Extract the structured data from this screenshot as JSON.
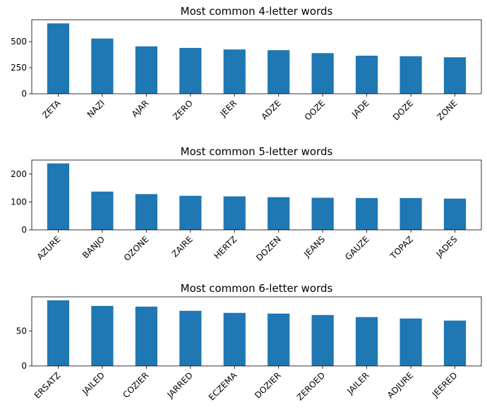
{
  "chart_data": [
    {
      "type": "bar",
      "title": "Most common 4-letter words",
      "categories": [
        "ZETA",
        "NAZI",
        "AJAR",
        "ZERO",
        "JEER",
        "ADZE",
        "OOZE",
        "JADE",
        "DOZE",
        "ZONE"
      ],
      "values": [
        675,
        530,
        455,
        440,
        425,
        418,
        390,
        365,
        360,
        350
      ],
      "yticks": [
        0,
        250,
        500
      ],
      "ylim": [
        0,
        710
      ],
      "grid": false,
      "bar_color": "#1f77b4"
    },
    {
      "type": "bar",
      "title": "Most common 5-letter words",
      "categories": [
        "AZURE",
        "BANJO",
        "OZONE",
        "ZAIRE",
        "HERTZ",
        "DOZEN",
        "JEANS",
        "GAUZE",
        "TOPAZ",
        "JADES"
      ],
      "values": [
        238,
        137,
        128,
        122,
        120,
        117,
        115,
        114,
        114,
        112
      ],
      "yticks": [
        0,
        100,
        200
      ],
      "ylim": [
        0,
        250
      ],
      "grid": false,
      "bar_color": "#1f77b4"
    },
    {
      "type": "bar",
      "title": "Most common 6-letter words",
      "categories": [
        "ERSATZ",
        "JAILED",
        "COZIER",
        "JARRED",
        "ECZEMA",
        "DOZIER",
        "ZEROED",
        "JAILER",
        "ADJURE",
        "JEERED"
      ],
      "values": [
        94,
        86,
        85,
        79,
        76,
        75,
        73,
        70,
        68,
        65
      ],
      "yticks": [
        0,
        50
      ],
      "ylim": [
        0,
        99
      ],
      "grid": false,
      "bar_color": "#1f77b4"
    }
  ]
}
